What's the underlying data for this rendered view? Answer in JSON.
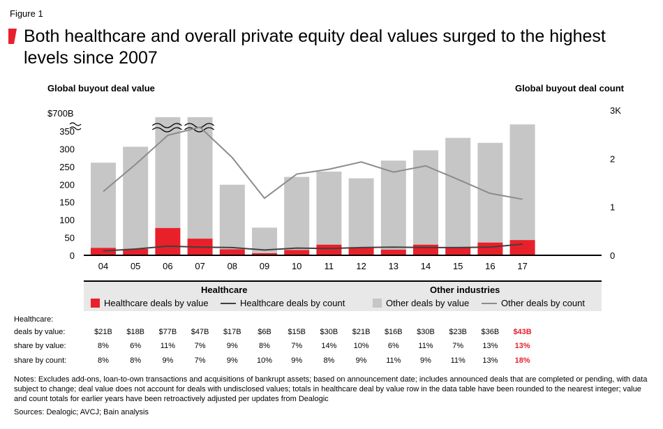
{
  "figure_label": "Figure 1",
  "title": "Both healthcare and overall private equity deal values surged to the highest levels since 2007",
  "colors": {
    "accent": "#e8202a",
    "gray_bar": "#c6c6c6",
    "hc_line": "#404040",
    "other_line": "#8c8c8c"
  },
  "chart_data": {
    "type": "bar",
    "categories": [
      "04",
      "05",
      "06",
      "07",
      "08",
      "09",
      "10",
      "11",
      "12",
      "13",
      "14",
      "15",
      "16",
      "17"
    ],
    "left_axis": {
      "title": "Global buyout deal value",
      "ticks": [
        "0",
        "50",
        "100",
        "150",
        "200",
        "250",
        "300",
        "350",
        "$700B"
      ],
      "range": [
        0,
        380
      ],
      "break_note": "broken axis: top tick represents $700B"
    },
    "right_axis": {
      "title": "Global buyout deal count",
      "ticks": [
        "0",
        "1",
        "2",
        "3K"
      ],
      "range": [
        0,
        3
      ]
    },
    "series": [
      {
        "name": "Healthcare deals by value",
        "kind": "bar",
        "values": [
          21,
          18,
          77,
          47,
          17,
          6,
          15,
          30,
          21,
          16,
          30,
          23,
          36,
          43
        ]
      },
      {
        "name": "Other deals by value",
        "kind": "bar",
        "values": [
          240,
          288,
          390,
          388,
          182,
          72,
          206,
          206,
          196,
          251,
          266,
          308,
          281,
          326
        ]
      },
      {
        "name": "Healthcare deals by count",
        "kind": "line",
        "axis": "right",
        "values": [
          0.09,
          0.13,
          0.19,
          0.17,
          0.16,
          0.11,
          0.15,
          0.14,
          0.16,
          0.17,
          0.16,
          0.16,
          0.17,
          0.23
        ]
      },
      {
        "name": "Other deals by count",
        "kind": "line",
        "axis": "right",
        "values": [
          1.32,
          1.88,
          2.48,
          2.65,
          2.02,
          1.18,
          1.68,
          1.78,
          1.93,
          1.72,
          1.85,
          1.57,
          1.28,
          1.16
        ]
      }
    ],
    "break_years": [
      "06",
      "07"
    ]
  },
  "legend": {
    "healthcare_head": "Healthcare",
    "other_head": "Other industries",
    "hc_value": "Healthcare deals by value",
    "hc_count": "Healthcare deals by count",
    "other_value": "Other deals by value",
    "other_count": "Other deals by count"
  },
  "table": {
    "head": "Healthcare:",
    "rows": [
      {
        "label": "deals by value:",
        "values": [
          "$21B",
          "$18B",
          "$77B",
          "$47B",
          "$17B",
          "$6B",
          "$15B",
          "$30B",
          "$21B",
          "$16B",
          "$30B",
          "$23B",
          "$36B",
          "$43B"
        ]
      },
      {
        "label": "share by value:",
        "values": [
          "8%",
          "6%",
          "11%",
          "7%",
          "9%",
          "8%",
          "7%",
          "14%",
          "10%",
          "6%",
          "11%",
          "7%",
          "13%",
          "13%"
        ]
      },
      {
        "label": "share by count:",
        "values": [
          "8%",
          "8%",
          "9%",
          "7%",
          "9%",
          "10%",
          "9%",
          "8%",
          "9%",
          "11%",
          "9%",
          "11%",
          "13%",
          "18%"
        ]
      }
    ]
  },
  "notes": "Notes: Excludes add-ons, loan-to-own transactions and acquisitions of bankrupt assets; based on announcement date; includes announced deals that are completed or pending, with data subject to change; deal value does not account for deals with undisclosed values; totals in healthcare deal by value row in the data table have been rounded to the nearest integer; value and count totals for earlier years have been retroactively adjusted per updates from Dealogic",
  "sources": "Sources: Dealogic; AVCJ; Bain analysis"
}
